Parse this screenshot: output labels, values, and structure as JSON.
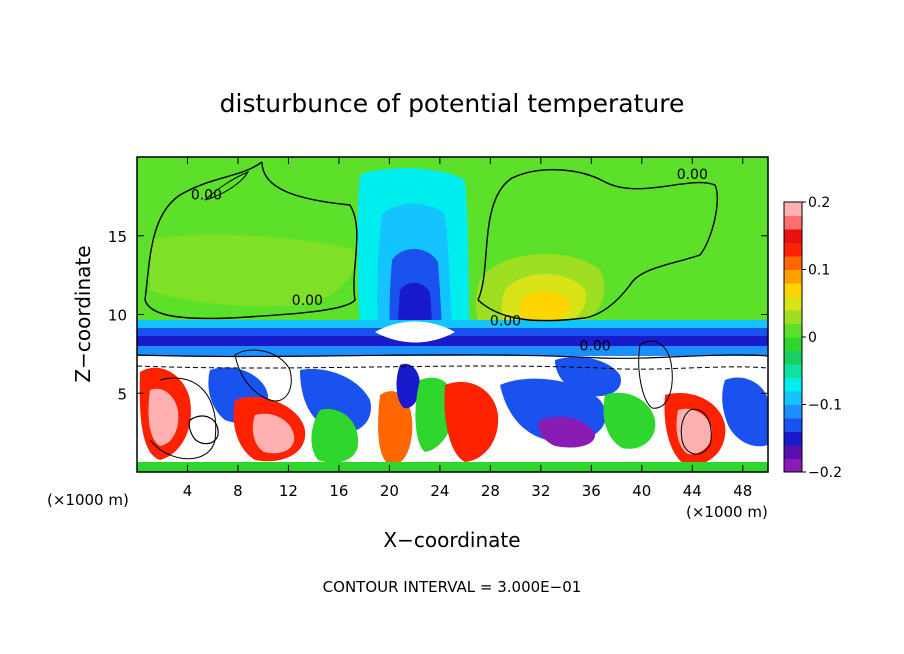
{
  "chart_data": {
    "type": "heatmap",
    "title": "disturbunce of potential temperature",
    "xlabel": "X−coordinate",
    "ylabel": "Z−coordinate",
    "x_unit": "(×1000 m)",
    "y_unit": "(×1000 m)",
    "xlim": [
      0,
      50
    ],
    "ylim": [
      0,
      20
    ],
    "x_ticks": [
      4,
      8,
      12,
      16,
      20,
      24,
      28,
      32,
      36,
      40,
      44,
      48
    ],
    "y_ticks": [
      5,
      10,
      15
    ],
    "colorbar": {
      "range": [
        -0.2,
        0.2
      ],
      "ticks": [
        {
          "value": 0.2,
          "label": "0.2"
        },
        {
          "value": 0.1,
          "label": "0.1"
        },
        {
          "value": 0,
          "label": "0"
        },
        {
          "value": -0.1,
          "label": "−0.1"
        },
        {
          "value": -0.2,
          "label": "−0.2"
        }
      ],
      "colors": [
        "#8b1bb5",
        "#5a10b0",
        "#1a1acd",
        "#1a52f0",
        "#1c8fff",
        "#13c4ff",
        "#00eded",
        "#10e0a0",
        "#18d060",
        "#2ed62e",
        "#5ce02a",
        "#9ee021",
        "#d8e417",
        "#ffd500",
        "#ff9f00",
        "#ff6600",
        "#ff2200",
        "#e81010",
        "#ff6f6f",
        "#ffb0b0"
      ]
    },
    "contour_labels": [
      {
        "x": 5.5,
        "y": 17.3,
        "text": "0.00"
      },
      {
        "x": 13.5,
        "y": 10.6,
        "text": "0.00"
      },
      {
        "x": 29.2,
        "y": 9.3,
        "text": "0.00"
      },
      {
        "x": 36.3,
        "y": 7.7,
        "text": "0.00"
      },
      {
        "x": 44.0,
        "y": 18.6,
        "text": "0.00"
      }
    ],
    "annotation": "CONTOUR INTERVAL = 3.000E−01"
  }
}
